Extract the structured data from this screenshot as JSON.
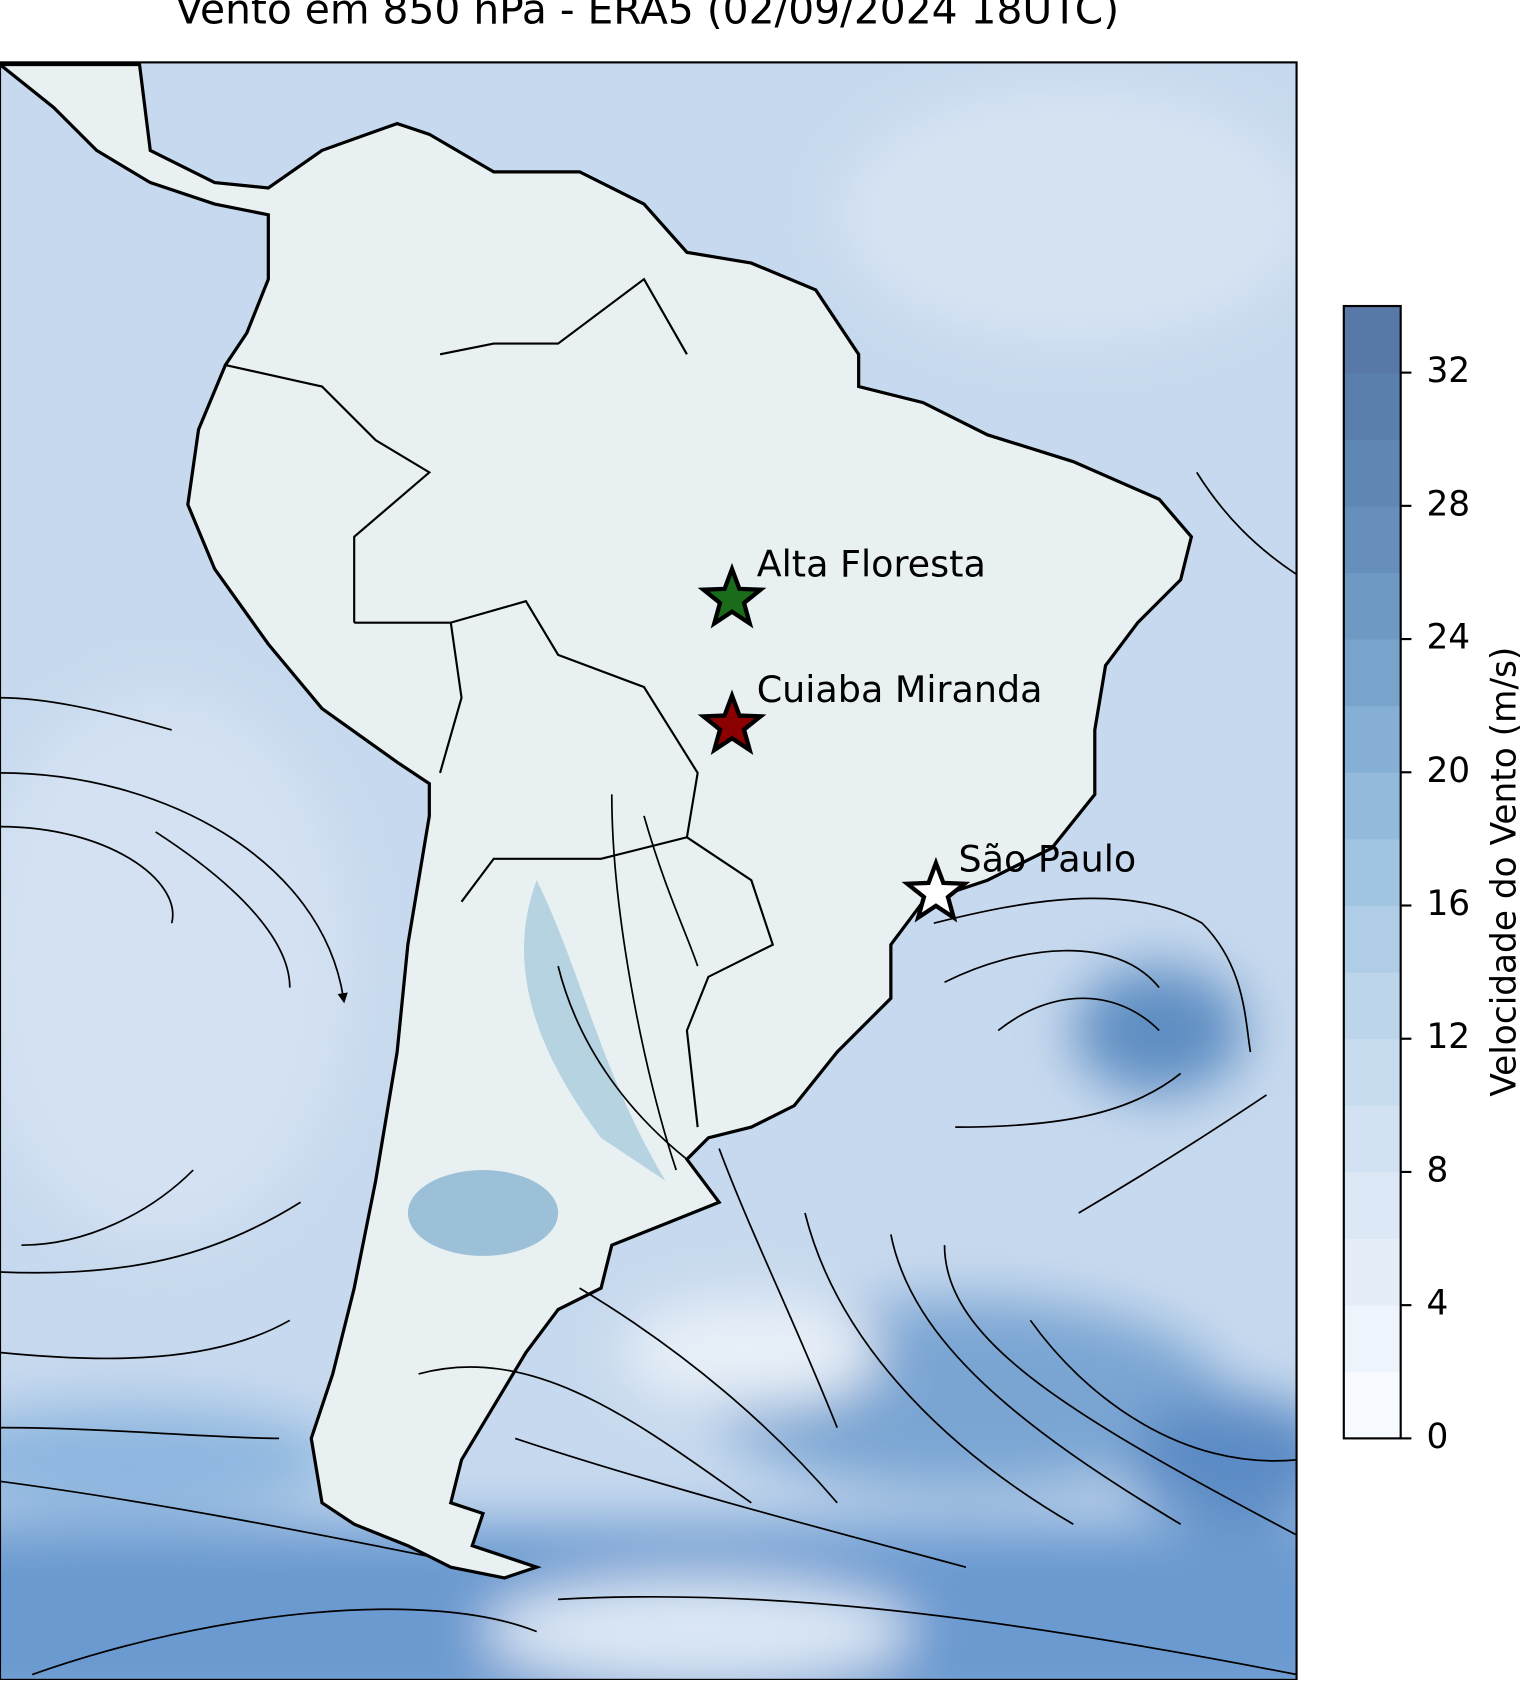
{
  "map": {
    "title": "Vento em 850 hPa - ERA5 (02/09/2024 18UTC)",
    "stations": [
      {
        "name": "Alta Floresta",
        "color": "#1a6b1a"
      },
      {
        "name": "Cuiaba Miranda",
        "color": "#8b0000"
      },
      {
        "name": "São Paulo",
        "color": "#ffffff"
      }
    ],
    "colorbar": {
      "label": "Velocidade do Vento (m/s)",
      "lim": [
        0,
        34
      ],
      "ticks": [
        0,
        4,
        8,
        12,
        16,
        20,
        24,
        28,
        32
      ],
      "colors": [
        "#f7fbff",
        "#eef4fb",
        "#e5eef8",
        "#dce8f5",
        "#d2e2f2",
        "#c8dcef",
        "#bcd5eb",
        "#afcde6",
        "#a1c4e1",
        "#93badb",
        "#85afd4",
        "#78a4cc",
        "#6e99c3",
        "#6690bb",
        "#5f87b3",
        "#5a7fac",
        "#5878a8"
      ]
    }
  }
}
